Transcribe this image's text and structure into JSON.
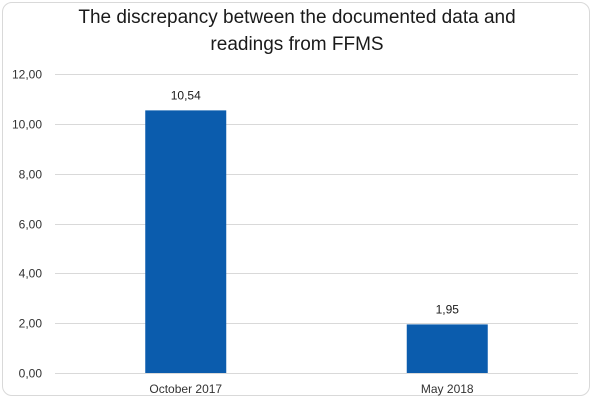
{
  "chart_data": {
    "type": "bar",
    "title_lines": [
      "The discrepancy between the documented data and",
      "readings from FFMS"
    ],
    "xlabel": "",
    "ylabel": "",
    "categories": [
      "October 2017",
      "May 2018"
    ],
    "values": [
      10.54,
      1.95
    ],
    "data_labels": [
      "10,54",
      "1,95"
    ],
    "ylim": [
      0,
      12
    ],
    "yticks": [
      0,
      2,
      4,
      6,
      8,
      10,
      12
    ],
    "ytick_labels": [
      "0,00",
      "2,00",
      "4,00",
      "6,00",
      "8,00",
      "10,00",
      "12,00"
    ],
    "grid": true,
    "legend": "none",
    "bar_color": "#0b5cad",
    "grid_color": "#d9d9d9"
  }
}
